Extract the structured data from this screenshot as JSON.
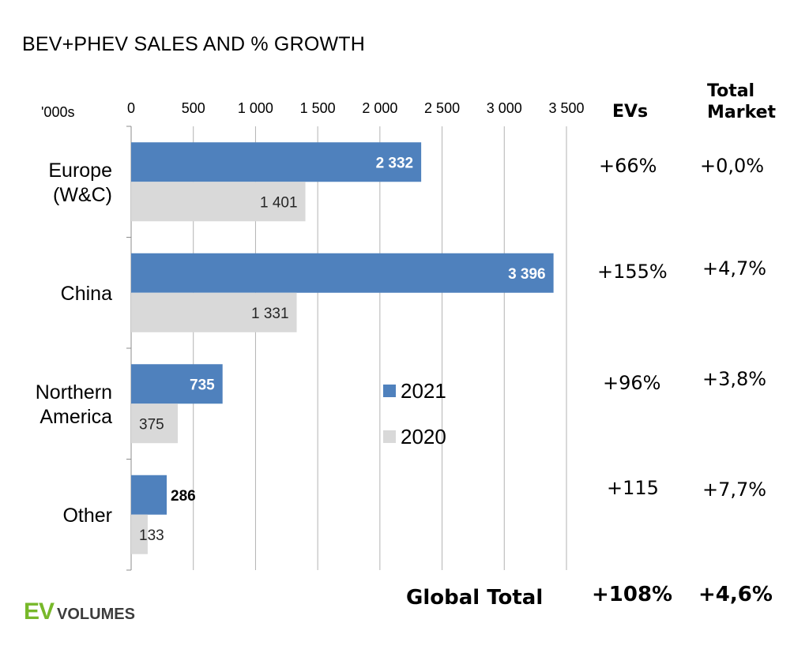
{
  "title": "BEV+PHEV SALES AND % GROWTH",
  "units_label": "'000s",
  "columns": {
    "evs": "EVs",
    "total_market_line1": "Total",
    "total_market_line2": "Market"
  },
  "growth_rows": [
    {
      "region": "Europe (W&C)",
      "evs": "+66%",
      "total_market": "+0,0%"
    },
    {
      "region": "China",
      "evs": "+155%",
      "total_market": "+4,7%"
    },
    {
      "region": "Northern America",
      "evs": "+96%",
      "total_market": "+3,8%"
    },
    {
      "region": "Other",
      "evs": "+115",
      "total_market": "+7,7%"
    }
  ],
  "global_total": {
    "label": "Global Total",
    "evs": "+108%",
    "total_market": "+4,6%"
  },
  "logo": {
    "ev": "EV",
    "volumes": "VOLUMES"
  },
  "colors": {
    "series_2021": "#4f81bd",
    "series_2020": "#d9d9d9",
    "logo_green": "#77b82a"
  },
  "chart_data": {
    "type": "bar",
    "orientation": "horizontal",
    "categories": [
      [
        "Europe",
        "(W&C)"
      ],
      [
        "China"
      ],
      [
        "Northern",
        "America"
      ],
      [
        "Other"
      ]
    ],
    "series": [
      {
        "name": "2021",
        "values": [
          2332,
          3396,
          735,
          286
        ],
        "labels": [
          "2 332",
          "3 396",
          "735",
          "286"
        ],
        "color": "#4f81bd"
      },
      {
        "name": "2020",
        "values": [
          1401,
          1331,
          375,
          133
        ],
        "labels": [
          "1 401",
          "1 331",
          "375",
          "133"
        ],
        "color": "#d9d9d9"
      }
    ],
    "xlim": [
      0,
      3500
    ],
    "xticks": [
      0,
      500,
      1000,
      1500,
      2000,
      2500,
      3000,
      3500
    ],
    "xtick_labels": [
      "0",
      "500",
      "1 000",
      "1 500",
      "2 000",
      "2 500",
      "3 000",
      "3 500"
    ],
    "xaxis_position": "top",
    "grid": true,
    "legend": "center"
  }
}
